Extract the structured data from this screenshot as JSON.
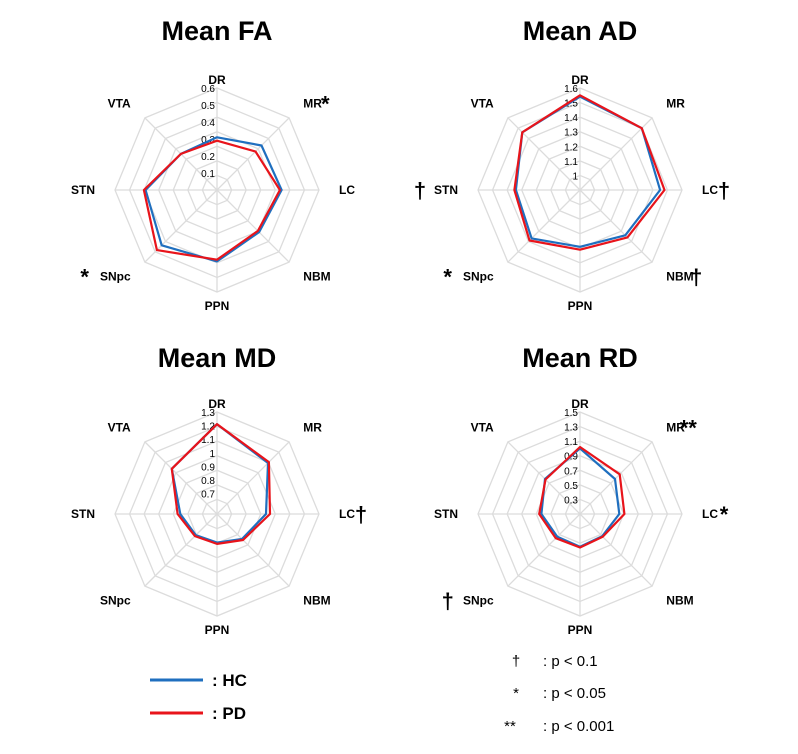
{
  "chart_data": [
    {
      "type": "radar",
      "title": "Mean FA",
      "axes": [
        "DR",
        "MR",
        "LC",
        "NBM",
        "PPN",
        "SNpc",
        "STN",
        "VTA"
      ],
      "range": [
        0,
        0.6
      ],
      "ticks": [
        "0.1",
        "0.2",
        "0.3",
        "0.4",
        "0.5",
        "0.6"
      ],
      "series": [
        {
          "name": "HC",
          "values": [
            0.31,
            0.37,
            0.38,
            0.35,
            0.42,
            0.46,
            0.42,
            0.3
          ]
        },
        {
          "name": "PD",
          "values": [
            0.29,
            0.32,
            0.37,
            0.34,
            0.41,
            0.5,
            0.43,
            0.3
          ]
        }
      ],
      "significance": {
        "MR": "*",
        "SNpc": "*"
      }
    },
    {
      "type": "radar",
      "title": "Mean AD",
      "axes": [
        "DR",
        "MR",
        "LC",
        "NBM",
        "PPN",
        "SNpc",
        "STN",
        "VTA"
      ],
      "range": [
        0.9,
        1.6
      ],
      "ticks": [
        "1",
        "1.1",
        "1.2",
        "1.3",
        "1.4",
        "1.5",
        "1.6"
      ],
      "series": [
        {
          "name": "HC",
          "values": [
            1.54,
            1.5,
            1.45,
            1.34,
            1.29,
            1.37,
            1.34,
            1.46
          ]
        },
        {
          "name": "PD",
          "values": [
            1.55,
            1.5,
            1.48,
            1.36,
            1.31,
            1.39,
            1.35,
            1.46
          ]
        }
      ],
      "significance": {
        "LC": "†",
        "NBM": "†",
        "STN": "†",
        "SNpc": "*"
      }
    },
    {
      "type": "radar",
      "title": "Mean MD",
      "axes": [
        "DR",
        "MR",
        "LC",
        "NBM",
        "PPN",
        "SNpc",
        "STN",
        "VTA"
      ],
      "range": [
        0.55,
        1.3
      ],
      "ticks": [
        "0.7",
        "0.8",
        "0.9",
        "1",
        "1.1",
        "1.2",
        "1.3"
      ],
      "series": [
        {
          "name": "HC",
          "values": [
            1.21,
            1.08,
            0.91,
            0.81,
            0.76,
            0.77,
            0.82,
            1.02
          ]
        },
        {
          "name": "PD",
          "values": [
            1.21,
            1.09,
            0.94,
            0.82,
            0.77,
            0.78,
            0.84,
            1.02
          ]
        }
      ],
      "significance": {
        "LC": "†"
      }
    },
    {
      "type": "radar",
      "title": "Mean RD",
      "axes": [
        "DR",
        "MR",
        "LC",
        "NBM",
        "PPN",
        "SNpc",
        "STN",
        "VTA"
      ],
      "range": [
        0.1,
        1.5
      ],
      "ticks": [
        "0.3",
        "0.5",
        "0.7",
        "0.9",
        "1.1",
        "1.3",
        "1.5"
      ],
      "series": [
        {
          "name": "HC",
          "values": [
            1.0,
            0.78,
            0.64,
            0.53,
            0.55,
            0.54,
            0.63,
            0.78
          ]
        },
        {
          "name": "PD",
          "values": [
            1.02,
            0.87,
            0.71,
            0.54,
            0.56,
            0.57,
            0.66,
            0.77
          ]
        }
      ],
      "significance": {
        "MR": "**",
        "LC": "*",
        "SNpc": "†"
      }
    }
  ],
  "legend": [
    {
      "label": ": HC",
      "color": "#1f6fbf"
    },
    {
      "label": ": PD",
      "color": "#e8141b"
    }
  ],
  "notes": [
    {
      "symbol": "†",
      "text": ": p < 0.1"
    },
    {
      "symbol": "*",
      "text": ": p < 0.05"
    },
    {
      "symbol": "**",
      "text": ": p < 0.001"
    }
  ]
}
